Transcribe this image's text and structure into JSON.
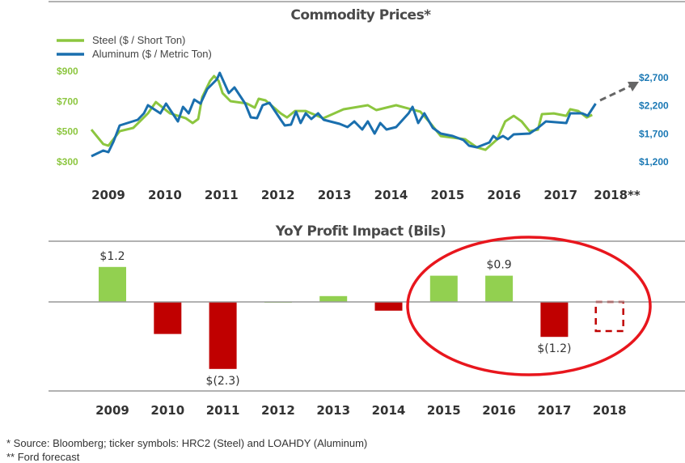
{
  "chart_data": [
    {
      "type": "line",
      "title": "Commodity Prices*",
      "legend_position": "top-left",
      "x_tick_labels": [
        "2009",
        "2010",
        "2011",
        "2012",
        "2013",
        "2014",
        "2015",
        "2016",
        "2017",
        "2018**"
      ],
      "y_left_ticks": [
        "$900",
        "$700",
        "$500",
        "$300"
      ],
      "y_left_range": [
        300,
        900
      ],
      "y_right_ticks": [
        "$2,700",
        "$2,200",
        "$1,700",
        "$1,200"
      ],
      "y_right_range": [
        1200,
        2700
      ],
      "forecast_arrow": "dashed arrow up-right after 2018 start",
      "series": [
        {
          "name": "Steel ($ / Short Ton)",
          "axis": "left",
          "color": "#8cc63f",
          "points": [
            [
              2009.2,
              514
            ],
            [
              2009.41,
              418
            ],
            [
              2009.5,
              407
            ],
            [
              2009.7,
              503
            ],
            [
              2009.94,
              525
            ],
            [
              2010.2,
              621
            ],
            [
              2010.34,
              696
            ],
            [
              2010.59,
              621
            ],
            [
              2010.87,
              589
            ],
            [
              2010.99,
              557
            ],
            [
              2011.09,
              584
            ],
            [
              2011.16,
              728
            ],
            [
              2011.3,
              836
            ],
            [
              2011.37,
              868
            ],
            [
              2011.45,
              836
            ],
            [
              2011.52,
              755
            ],
            [
              2011.66,
              702
            ],
            [
              2011.95,
              686
            ],
            [
              2012.09,
              659
            ],
            [
              2012.16,
              718
            ],
            [
              2012.28,
              707
            ],
            [
              2012.55,
              621
            ],
            [
              2012.66,
              594
            ],
            [
              2012.8,
              637
            ],
            [
              2012.99,
              637
            ],
            [
              2013.3,
              589
            ],
            [
              2013.66,
              648
            ],
            [
              2014.09,
              675
            ],
            [
              2014.24,
              643
            ],
            [
              2014.59,
              675
            ],
            [
              2015.02,
              632
            ],
            [
              2015.17,
              568
            ],
            [
              2015.38,
              471
            ],
            [
              2015.81,
              450
            ],
            [
              2016.02,
              396
            ],
            [
              2016.17,
              380
            ],
            [
              2016.38,
              450
            ],
            [
              2016.52,
              568
            ],
            [
              2016.67,
              605
            ],
            [
              2016.81,
              568
            ],
            [
              2016.95,
              503
            ],
            [
              2017.1,
              514
            ],
            [
              2017.17,
              616
            ],
            [
              2017.38,
              621
            ],
            [
              2017.6,
              605
            ],
            [
              2017.67,
              648
            ],
            [
              2017.81,
              637
            ],
            [
              2017.96,
              594
            ],
            [
              2018.06,
              611
            ]
          ]
        },
        {
          "name": "Aluminum ($ / Metric Ton)",
          "axis": "right",
          "color": "#1a6fae",
          "points": [
            [
              2009.2,
              1301
            ],
            [
              2009.41,
              1402
            ],
            [
              2009.5,
              1373
            ],
            [
              2009.59,
              1561
            ],
            [
              2009.7,
              1849
            ],
            [
              2010.02,
              1950
            ],
            [
              2010.13,
              2066
            ],
            [
              2010.2,
              2210
            ],
            [
              2010.42,
              2066
            ],
            [
              2010.52,
              2239
            ],
            [
              2010.73,
              1921
            ],
            [
              2010.82,
              2181
            ],
            [
              2010.92,
              2066
            ],
            [
              2011.02,
              2311
            ],
            [
              2011.13,
              2239
            ],
            [
              2011.25,
              2498
            ],
            [
              2011.42,
              2671
            ],
            [
              2011.47,
              2787
            ],
            [
              2011.63,
              2426
            ],
            [
              2011.73,
              2527
            ],
            [
              2011.92,
              2239
            ],
            [
              2012.02,
              1993
            ],
            [
              2012.13,
              1979
            ],
            [
              2012.23,
              2210
            ],
            [
              2012.35,
              2253
            ],
            [
              2012.55,
              1950
            ],
            [
              2012.62,
              1849
            ],
            [
              2012.73,
              1864
            ],
            [
              2012.82,
              2094
            ],
            [
              2012.9,
              1892
            ],
            [
              2012.99,
              2066
            ],
            [
              2013.09,
              1965
            ],
            [
              2013.21,
              2066
            ],
            [
              2013.31,
              1950
            ],
            [
              2013.59,
              1878
            ],
            [
              2013.73,
              1820
            ],
            [
              2013.85,
              1921
            ],
            [
              2013.99,
              1777
            ],
            [
              2014.09,
              1921
            ],
            [
              2014.21,
              1705
            ],
            [
              2014.31,
              1892
            ],
            [
              2014.42,
              1777
            ],
            [
              2014.59,
              1820
            ],
            [
              2014.81,
              2066
            ],
            [
              2014.88,
              2181
            ],
            [
              2014.98,
              1892
            ],
            [
              2015.09,
              2066
            ],
            [
              2015.24,
              1806
            ],
            [
              2015.38,
              1705
            ],
            [
              2015.59,
              1662
            ],
            [
              2015.78,
              1590
            ],
            [
              2015.88,
              1489
            ],
            [
              2016.02,
              1460
            ],
            [
              2016.24,
              1546
            ],
            [
              2016.31,
              1662
            ],
            [
              2016.38,
              1604
            ],
            [
              2016.48,
              1662
            ],
            [
              2016.57,
              1604
            ],
            [
              2016.67,
              1691
            ],
            [
              2016.95,
              1705
            ],
            [
              2017.1,
              1806
            ],
            [
              2017.24,
              1921
            ],
            [
              2017.6,
              1892
            ],
            [
              2017.67,
              2066
            ],
            [
              2017.88,
              2066
            ],
            [
              2017.98,
              2022
            ],
            [
              2018.12,
              2239
            ]
          ]
        }
      ]
    },
    {
      "type": "bar",
      "title": "YoY Profit Impact (Bils)",
      "categories": [
        "2009",
        "2010",
        "2011",
        "2012",
        "2013",
        "2014",
        "2015",
        "2016",
        "2017",
        "2018"
      ],
      "values": [
        1.2,
        -1.1,
        -2.3,
        0.0,
        0.2,
        -0.3,
        0.9,
        0.9,
        -1.2,
        -1.0
      ],
      "data_labels": [
        "$1.2",
        "",
        "$(2.3)",
        "",
        "",
        "",
        "",
        "$0.9",
        "$(1.2)",
        ""
      ],
      "forecast_categories": [
        "2018"
      ],
      "positive_color": "#92d050",
      "negative_color": "#c00000",
      "highlight": "red ellipse around 2015-2018"
    }
  ],
  "footnotes": [
    "* Source:  Bloomberg; ticker symbols:  HRC2 (Steel) and LOAHDY (Aluminum)",
    "** Ford forecast"
  ]
}
